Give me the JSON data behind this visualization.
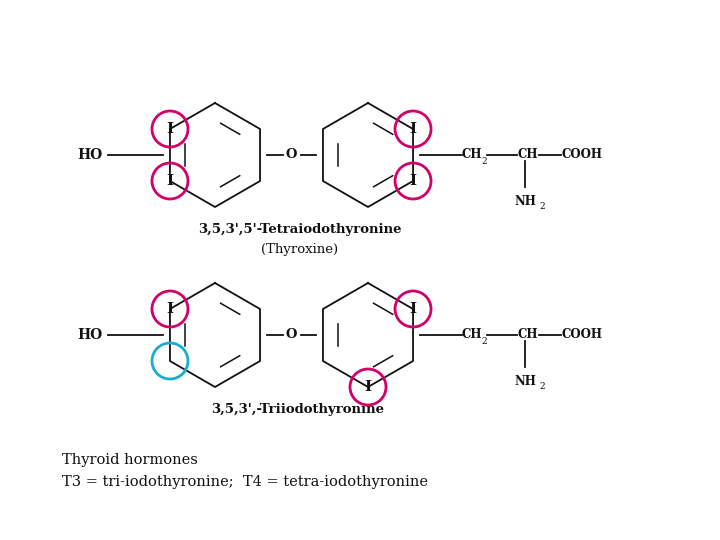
{
  "background_color": "#ffffff",
  "caption_line1": "Thyroid hormones",
  "caption_line2": "T3 = tri-iodothyronine;  T4 = tetra-iodothyronine",
  "caption_fontsize": 11.0,
  "magenta_circle_color": "#D4006A",
  "cyan_circle_color": "#1AADCE",
  "circle_lw": 2.0,
  "struct_lw": 1.3,
  "struct_color": "#111111",
  "label_color": "#111111",
  "t4_label": "3,5,3',5'-Tetraiodothyronine",
  "t4_sublabel": "(Thyroxine)",
  "t3_label": "3,5,3',-Triiodothyronine"
}
